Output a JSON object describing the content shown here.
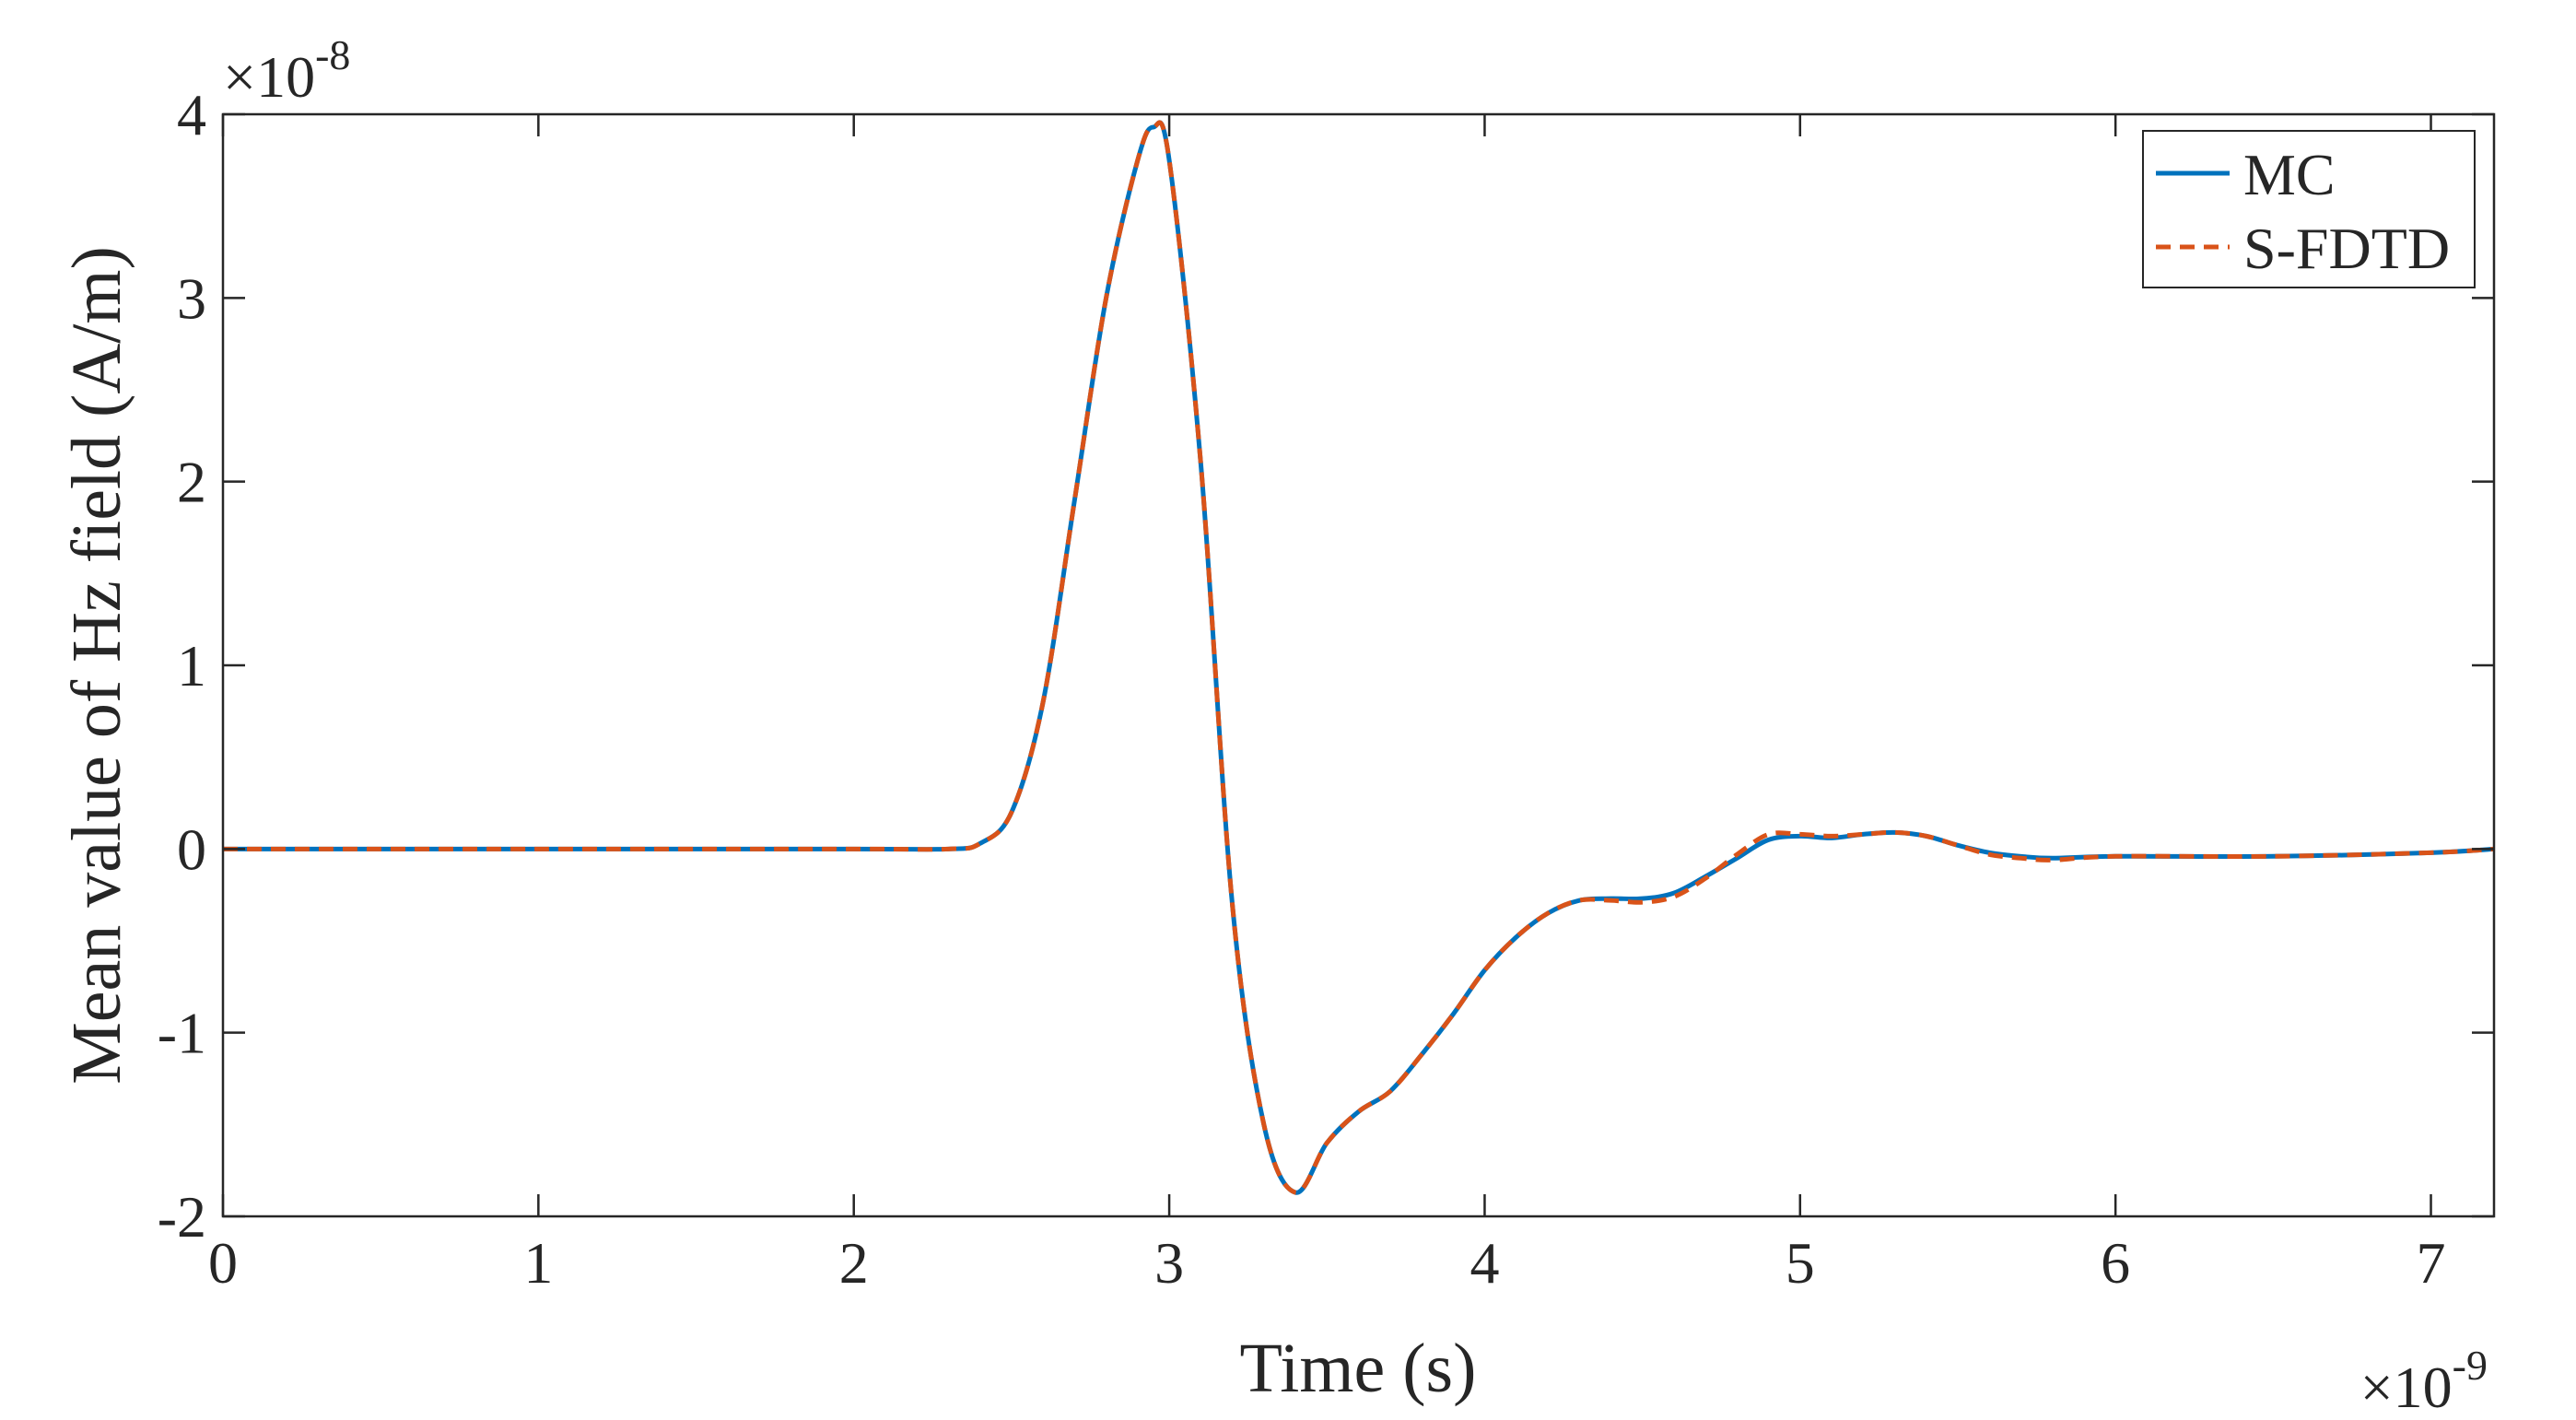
{
  "chart_data": {
    "type": "line",
    "title": "",
    "xlabel": "Time (s)",
    "ylabel": "Mean value of Hz field (A/m)",
    "x_multiplier": "×10",
    "x_exponent": "-9",
    "y_multiplier": "×10",
    "y_exponent": "-8",
    "xlim": [
      0,
      7.2
    ],
    "ylim": [
      -2,
      4
    ],
    "x_ticks": [
      0,
      1,
      2,
      3,
      4,
      5,
      6,
      7
    ],
    "x_tick_labels": [
      "0",
      "1",
      "2",
      "3",
      "4",
      "5",
      "6",
      "7"
    ],
    "y_ticks": [
      -2,
      -1,
      0,
      1,
      2,
      3,
      4
    ],
    "y_tick_labels": [
      "-2",
      "-1",
      "0",
      "1",
      "2",
      "3",
      "4"
    ],
    "grid": false,
    "legend_position": "top-right",
    "series": [
      {
        "name": "MC",
        "color": "#0072BD",
        "style": "solid",
        "x": [
          0,
          1.0,
          2.0,
          2.3,
          2.4,
          2.5,
          2.6,
          2.7,
          2.8,
          2.9,
          2.95,
          3.0,
          3.1,
          3.2,
          3.3,
          3.4,
          3.5,
          3.6,
          3.7,
          3.8,
          3.9,
          4.0,
          4.1,
          4.2,
          4.3,
          4.4,
          4.5,
          4.6,
          4.7,
          4.8,
          4.9,
          5.0,
          5.1,
          5.2,
          5.3,
          5.4,
          5.5,
          5.6,
          5.7,
          5.8,
          6.0,
          6.5,
          7.0,
          7.2
        ],
        "y": [
          0,
          0,
          0,
          0.0,
          0.03,
          0.2,
          0.8,
          1.9,
          3.0,
          3.75,
          3.93,
          3.75,
          2.1,
          -0.3,
          -1.5,
          -1.87,
          -1.6,
          -1.43,
          -1.32,
          -1.12,
          -0.9,
          -0.66,
          -0.48,
          -0.35,
          -0.28,
          -0.27,
          -0.27,
          -0.24,
          -0.15,
          -0.05,
          0.05,
          0.07,
          0.06,
          0.08,
          0.09,
          0.07,
          0.02,
          -0.02,
          -0.04,
          -0.05,
          -0.04,
          -0.04,
          -0.02,
          0.0
        ]
      },
      {
        "name": "S-FDTD",
        "color": "#D95319",
        "style": "dashed",
        "x": [
          0,
          1.0,
          2.0,
          2.3,
          2.4,
          2.5,
          2.6,
          2.7,
          2.8,
          2.9,
          2.95,
          3.0,
          3.1,
          3.2,
          3.3,
          3.4,
          3.5,
          3.6,
          3.7,
          3.8,
          3.9,
          4.0,
          4.1,
          4.2,
          4.3,
          4.4,
          4.5,
          4.6,
          4.7,
          4.8,
          4.9,
          5.0,
          5.1,
          5.2,
          5.3,
          5.4,
          5.5,
          5.6,
          5.7,
          5.8,
          6.0,
          6.5,
          7.0,
          7.2
        ],
        "y": [
          0,
          0,
          0,
          0.0,
          0.03,
          0.2,
          0.8,
          1.9,
          3.0,
          3.75,
          3.93,
          3.75,
          2.1,
          -0.3,
          -1.5,
          -1.87,
          -1.6,
          -1.43,
          -1.32,
          -1.12,
          -0.9,
          -0.66,
          -0.48,
          -0.35,
          -0.28,
          -0.28,
          -0.29,
          -0.26,
          -0.16,
          -0.03,
          0.08,
          0.08,
          0.07,
          0.08,
          0.09,
          0.07,
          0.02,
          -0.03,
          -0.05,
          -0.06,
          -0.04,
          -0.04,
          -0.02,
          0.0
        ]
      }
    ]
  }
}
